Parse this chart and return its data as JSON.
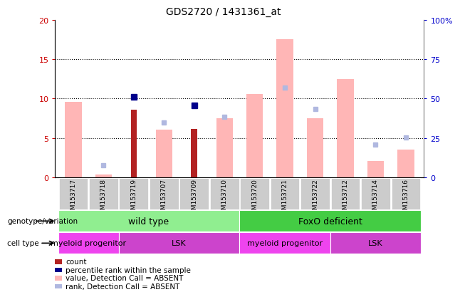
{
  "title": "GDS2720 / 1431361_at",
  "samples": [
    "GSM153717",
    "GSM153718",
    "GSM153719",
    "GSM153707",
    "GSM153709",
    "GSM153710",
    "GSM153720",
    "GSM153721",
    "GSM153722",
    "GSM153712",
    "GSM153714",
    "GSM153716"
  ],
  "count_values": [
    null,
    null,
    8.6,
    null,
    6.2,
    null,
    null,
    null,
    null,
    null,
    null,
    null
  ],
  "percentile_rank": [
    null,
    null,
    10.2,
    null,
    9.1,
    null,
    null,
    null,
    null,
    null,
    null,
    null
  ],
  "value_absent": [
    9.6,
    0.4,
    null,
    6.1,
    null,
    7.5,
    10.6,
    17.5,
    7.5,
    12.5,
    2.1,
    3.5
  ],
  "rank_absent": [
    null,
    1.6,
    null,
    7.0,
    null,
    7.7,
    null,
    11.4,
    8.7,
    null,
    4.2,
    5.1
  ],
  "ylim_left": [
    0,
    20
  ],
  "ylim_right": [
    0,
    100
  ],
  "left_yticks": [
    0,
    5,
    10,
    15,
    20
  ],
  "right_yticks": [
    0,
    25,
    50,
    75,
    100
  ],
  "right_yticklabels": [
    "0",
    "25",
    "50",
    "75",
    "100%"
  ],
  "color_count": "#b22222",
  "color_percentile": "#00008b",
  "color_value_absent": "#ffb6b6",
  "color_rank_absent": "#b0b8e0",
  "left_label_color": "#cc0000",
  "right_label_color": "#0000cc",
  "background_color": "#ffffff",
  "plot_bg_color": "#ffffff",
  "tick_bg_color": "#cccccc",
  "wt_color": "#90ee90",
  "foxo_color": "#44cc44",
  "myeloid_color": "#ee44ee",
  "lsk_color": "#cc44cc"
}
